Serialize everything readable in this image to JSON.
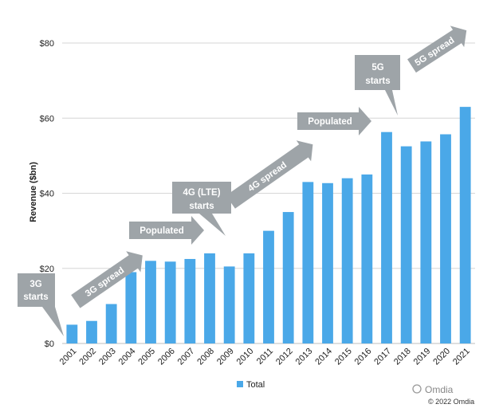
{
  "colors": {
    "bar": "#4aa8e8",
    "annotation": "#9ea4a8",
    "grid": "#d6d6d6"
  },
  "chart_data": {
    "type": "bar",
    "categories": [
      "2001",
      "2002",
      "2003",
      "2004",
      "2005",
      "2006",
      "2007",
      "2008",
      "2009",
      "2010",
      "2011",
      "2012",
      "2013",
      "2014",
      "2015",
      "2016",
      "2017",
      "2018",
      "2019",
      "2020",
      "2021"
    ],
    "series": [
      {
        "name": "Total",
        "values": [
          5,
          6,
          10.5,
          19,
          22,
          21.8,
          22.5,
          24,
          20.5,
          24,
          30,
          35,
          43,
          42.7,
          44,
          45,
          56.3,
          52.5,
          53.8,
          55.7,
          63
        ]
      }
    ],
    "ylabel": "Revenue ($bn)",
    "ylim": [
      0,
      80
    ],
    "yticks": [
      0,
      20,
      40,
      60,
      80
    ],
    "ytick_labels": [
      "$0",
      "$20",
      "$40",
      "$60",
      "$80"
    ],
    "grid": true,
    "legend": {
      "position": "bottom",
      "label": "Total"
    },
    "annotations": [
      {
        "kind": "callout",
        "lines": [
          "3G",
          "starts"
        ]
      },
      {
        "kind": "arrow-diag",
        "text": "3G spread"
      },
      {
        "kind": "arrow-flat",
        "text": "Populated"
      },
      {
        "kind": "callout",
        "lines": [
          "4G (LTE)",
          "starts"
        ]
      },
      {
        "kind": "arrow-diag",
        "text": "4G spread"
      },
      {
        "kind": "arrow-flat",
        "text": "Populated"
      },
      {
        "kind": "callout",
        "lines": [
          "5G",
          "starts"
        ]
      },
      {
        "kind": "arrow-diag",
        "text": "5G spread"
      }
    ]
  },
  "watermark": {
    "logo_text": "Omdia",
    "copyright": "© 2022 Omdia"
  }
}
